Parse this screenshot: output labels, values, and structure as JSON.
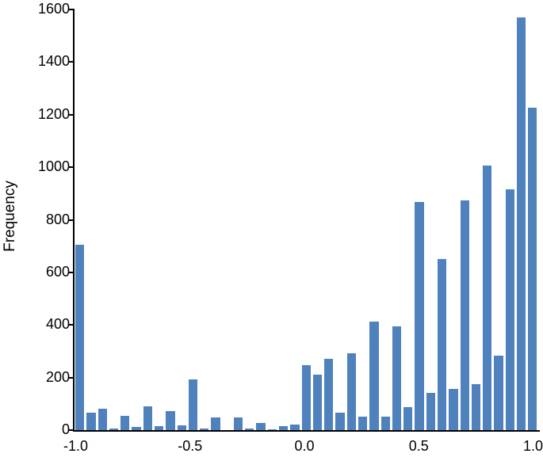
{
  "chart_data": {
    "type": "bar",
    "title": "",
    "xlabel": "",
    "ylabel": "Frequency",
    "ylim": [
      0,
      1600
    ],
    "xlim": [
      -1.0,
      1.0
    ],
    "bin_width": 0.05,
    "yticks": [
      "0",
      "200",
      "400",
      "600",
      "800",
      "1000",
      "1200",
      "1400",
      "1600"
    ],
    "xticks": [
      "-1.0",
      "-0.5",
      "0.0",
      "0.5",
      "1.0"
    ],
    "grid": false,
    "legend": null,
    "bar_color": "#4F81BD",
    "categories": [
      -1.0,
      -0.95,
      -0.9,
      -0.85,
      -0.8,
      -0.75,
      -0.7,
      -0.65,
      -0.6,
      -0.55,
      -0.5,
      -0.45,
      -0.4,
      -0.35,
      -0.3,
      -0.25,
      -0.2,
      -0.15,
      -0.1,
      -0.05,
      0.0,
      0.05,
      0.1,
      0.15,
      0.2,
      0.25,
      0.3,
      0.35,
      0.4,
      0.45,
      0.5,
      0.55,
      0.6,
      0.65,
      0.7,
      0.75,
      0.8,
      0.85,
      0.9,
      0.95,
      1.0
    ],
    "values": [
      705,
      66,
      80,
      7,
      54,
      12,
      90,
      16,
      72,
      18,
      193,
      5,
      48,
      0,
      47,
      5,
      28,
      3,
      15,
      22,
      248,
      211,
      271,
      66,
      292,
      51,
      413,
      52,
      395,
      87,
      867,
      142,
      650,
      157,
      873,
      175,
      1006,
      283,
      915,
      1569,
      1226
    ]
  }
}
